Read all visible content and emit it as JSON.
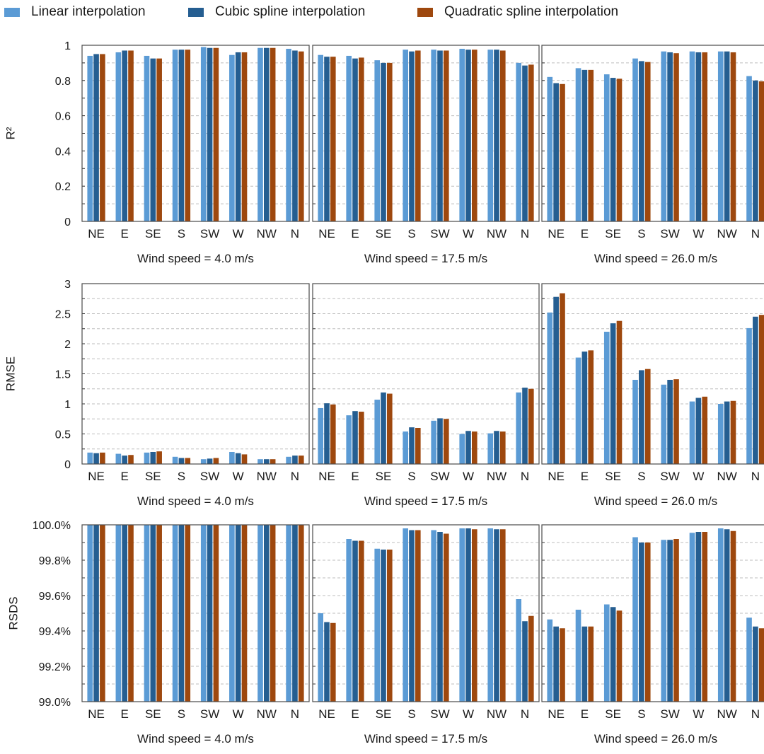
{
  "legend": [
    {
      "label": "Linear interpolation",
      "color": "#5b9bd5"
    },
    {
      "label": "Cubic spline interpolation",
      "color": "#255e91"
    },
    {
      "label": "Quadratic spline interpolation",
      "color": "#9e480e"
    }
  ],
  "chart_data": {
    "type": "bar",
    "layout": "3x3 grid of grouped bar charts",
    "categories": [
      "NE",
      "E",
      "SE",
      "S",
      "SW",
      "W",
      "NW",
      "N"
    ],
    "series_names": [
      "Linear interpolation",
      "Cubic spline interpolation",
      "Quadratic spline interpolation"
    ],
    "legend_position": "top",
    "grid": "horizontal dashed",
    "rows": [
      {
        "ylabel": "R²",
        "ylim": [
          0,
          1
        ],
        "yticks": [
          0,
          0.2,
          0.4,
          0.6,
          0.8,
          1
        ],
        "ytick_labels": [
          "0",
          "0.2",
          "0.4",
          "0.6",
          "0.8",
          "1"
        ],
        "minor_step": 0.1,
        "panels": [
          {
            "xlabel": "Wind speed = 4.0 m/s",
            "series": [
              {
                "name": "Linear interpolation",
                "values": [
                  0.94,
                  0.96,
                  0.94,
                  0.975,
                  0.99,
                  0.945,
                  0.985,
                  0.98
                ]
              },
              {
                "name": "Cubic spline interpolation",
                "values": [
                  0.95,
                  0.97,
                  0.925,
                  0.975,
                  0.985,
                  0.96,
                  0.985,
                  0.97
                ]
              },
              {
                "name": "Quadratic spline interpolation",
                "values": [
                  0.95,
                  0.97,
                  0.925,
                  0.975,
                  0.985,
                  0.96,
                  0.985,
                  0.965
                ]
              }
            ]
          },
          {
            "xlabel": "Wind speed = 17.5 m/s",
            "series": [
              {
                "name": "Linear interpolation",
                "values": [
                  0.945,
                  0.94,
                  0.915,
                  0.975,
                  0.975,
                  0.98,
                  0.975,
                  0.9
                ]
              },
              {
                "name": "Cubic spline interpolation",
                "values": [
                  0.935,
                  0.925,
                  0.9,
                  0.965,
                  0.97,
                  0.975,
                  0.975,
                  0.885
                ]
              },
              {
                "name": "Quadratic spline interpolation",
                "values": [
                  0.935,
                  0.93,
                  0.9,
                  0.97,
                  0.97,
                  0.975,
                  0.97,
                  0.89
                ]
              }
            ]
          },
          {
            "xlabel": "Wind speed = 26.0 m/s",
            "series": [
              {
                "name": "Linear interpolation",
                "values": [
                  0.82,
                  0.87,
                  0.835,
                  0.925,
                  0.965,
                  0.965,
                  0.965,
                  0.825
                ]
              },
              {
                "name": "Cubic spline interpolation",
                "values": [
                  0.785,
                  0.86,
                  0.815,
                  0.91,
                  0.96,
                  0.96,
                  0.965,
                  0.8
                ]
              },
              {
                "name": "Quadratic spline interpolation",
                "values": [
                  0.78,
                  0.86,
                  0.81,
                  0.905,
                  0.955,
                  0.96,
                  0.96,
                  0.795
                ]
              }
            ]
          }
        ]
      },
      {
        "ylabel": "RMSE",
        "ylim": [
          0,
          3
        ],
        "yticks": [
          0,
          0.5,
          1,
          1.5,
          2,
          2.5,
          3
        ],
        "ytick_labels": [
          "0",
          "0.5",
          "1",
          "1.5",
          "2",
          "2.5",
          "3"
        ],
        "minor_step": 0.25,
        "panels": [
          {
            "xlabel": "Wind speed = 4.0 m/s",
            "series": [
              {
                "name": "Linear interpolation",
                "values": [
                  0.19,
                  0.17,
                  0.19,
                  0.12,
                  0.08,
                  0.2,
                  0.08,
                  0.12
                ]
              },
              {
                "name": "Cubic spline interpolation",
                "values": [
                  0.18,
                  0.14,
                  0.2,
                  0.1,
                  0.09,
                  0.18,
                  0.08,
                  0.14
                ]
              },
              {
                "name": "Quadratic spline interpolation",
                "values": [
                  0.19,
                  0.15,
                  0.21,
                  0.1,
                  0.1,
                  0.16,
                  0.08,
                  0.14
                ]
              }
            ]
          },
          {
            "xlabel": "Wind speed = 17.5 m/s",
            "series": [
              {
                "name": "Linear interpolation",
                "values": [
                  0.93,
                  0.81,
                  1.07,
                  0.54,
                  0.72,
                  0.5,
                  0.51,
                  1.19
                ]
              },
              {
                "name": "Cubic spline interpolation",
                "values": [
                  1.01,
                  0.88,
                  1.19,
                  0.61,
                  0.76,
                  0.55,
                  0.55,
                  1.27
                ]
              },
              {
                "name": "Quadratic spline interpolation",
                "values": [
                  0.99,
                  0.87,
                  1.17,
                  0.6,
                  0.75,
                  0.54,
                  0.54,
                  1.25
                ]
              }
            ]
          },
          {
            "xlabel": "Wind speed = 26.0 m/s",
            "series": [
              {
                "name": "Linear interpolation",
                "values": [
                  2.52,
                  1.77,
                  2.2,
                  1.4,
                  1.32,
                  1.04,
                  1.0,
                  2.26
                ]
              },
              {
                "name": "Cubic spline interpolation",
                "values": [
                  2.78,
                  1.87,
                  2.34,
                  1.56,
                  1.4,
                  1.1,
                  1.04,
                  2.45
                ]
              },
              {
                "name": "Quadratic spline interpolation",
                "values": [
                  2.84,
                  1.89,
                  2.38,
                  1.58,
                  1.41,
                  1.12,
                  1.05,
                  2.48
                ]
              }
            ]
          }
        ]
      },
      {
        "ylabel": "RSDS",
        "ylim": [
          99.0,
          100.0
        ],
        "yticks": [
          99.0,
          99.2,
          99.4,
          99.6,
          99.8,
          100.0
        ],
        "ytick_labels": [
          "99.0%",
          "99.2%",
          "99.4%",
          "99.6%",
          "99.8%",
          "100.0%"
        ],
        "minor_step": 0.1,
        "panels": [
          {
            "xlabel": "Wind speed = 4.0 m/s",
            "series": [
              {
                "name": "Linear interpolation",
                "values": [
                  100.0,
                  100.0,
                  100.0,
                  100.0,
                  100.0,
                  100.0,
                  100.0,
                  100.0
                ]
              },
              {
                "name": "Cubic spline interpolation",
                "values": [
                  100.0,
                  100.0,
                  100.0,
                  100.0,
                  100.0,
                  100.0,
                  100.0,
                  100.0
                ]
              },
              {
                "name": "Quadratic spline interpolation",
                "values": [
                  100.0,
                  100.0,
                  100.0,
                  100.0,
                  100.0,
                  100.0,
                  100.0,
                  100.0
                ]
              }
            ]
          },
          {
            "xlabel": "Wind speed = 17.5 m/s",
            "series": [
              {
                "name": "Linear interpolation",
                "values": [
                  99.5,
                  99.92,
                  99.865,
                  99.98,
                  99.97,
                  99.98,
                  99.98,
                  99.58
                ]
              },
              {
                "name": "Cubic spline interpolation",
                "values": [
                  99.45,
                  99.91,
                  99.86,
                  99.97,
                  99.96,
                  99.98,
                  99.975,
                  99.455
                ]
              },
              {
                "name": "Quadratic spline interpolation",
                "values": [
                  99.445,
                  99.91,
                  99.86,
                  99.97,
                  99.95,
                  99.975,
                  99.975,
                  99.485
                ]
              }
            ]
          },
          {
            "xlabel": "Wind speed = 26.0 m/s",
            "series": [
              {
                "name": "Linear interpolation",
                "values": [
                  99.465,
                  99.52,
                  99.55,
                  99.93,
                  99.915,
                  99.955,
                  99.98,
                  99.475
                ]
              },
              {
                "name": "Cubic spline interpolation",
                "values": [
                  99.425,
                  99.425,
                  99.535,
                  99.9,
                  99.915,
                  99.96,
                  99.975,
                  99.425
                ]
              },
              {
                "name": "Quadratic spline interpolation",
                "values": [
                  99.415,
                  99.425,
                  99.515,
                  99.9,
                  99.92,
                  99.96,
                  99.965,
                  99.415
                ]
              }
            ]
          }
        ]
      }
    ]
  }
}
